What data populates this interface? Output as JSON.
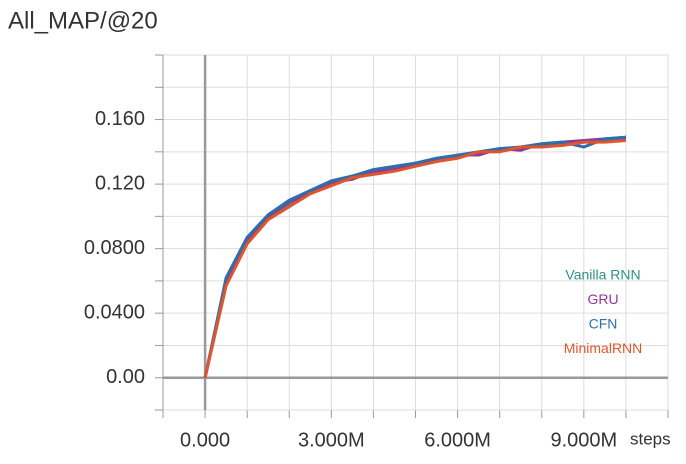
{
  "chart_data": {
    "type": "line",
    "title": "All_MAP/@20",
    "x_label": "steps",
    "x": [
      0,
      500000,
      1000000,
      1500000,
      2000000,
      2500000,
      3000000,
      3500000,
      4000000,
      4500000,
      5000000,
      5500000,
      6000000,
      6500000,
      7000000,
      7500000,
      8000000,
      8500000,
      9000000,
      9500000,
      10000000
    ],
    "series": [
      {
        "name": "Vanilla RNN",
        "color": "#2e9188",
        "values": [
          0,
          0.061,
          0.086,
          0.099,
          0.108,
          0.116,
          0.12,
          0.125,
          0.127,
          0.13,
          0.132,
          0.135,
          0.137,
          0.139,
          0.141,
          0.143,
          0.144,
          0.145,
          0.146,
          0.147,
          0.148
        ]
      },
      {
        "name": "GRU",
        "color": "#8e3a99",
        "values": [
          0,
          0.058,
          0.084,
          0.1,
          0.109,
          0.114,
          0.121,
          0.123,
          0.128,
          0.129,
          0.133,
          0.134,
          0.138,
          0.138,
          0.142,
          0.141,
          0.145,
          0.146,
          0.147,
          0.148,
          0.149
        ]
      },
      {
        "name": "CFN",
        "color": "#2f6ea8",
        "values": [
          0,
          0.062,
          0.087,
          0.101,
          0.11,
          0.116,
          0.122,
          0.125,
          0.129,
          0.131,
          0.133,
          0.136,
          0.138,
          0.14,
          0.142,
          0.143,
          0.145,
          0.146,
          0.143,
          0.148,
          0.149
        ]
      },
      {
        "name": "MinimalRNN",
        "color": "#e0552e",
        "values": [
          0,
          0.057,
          0.083,
          0.098,
          0.106,
          0.114,
          0.119,
          0.124,
          0.126,
          0.128,
          0.131,
          0.134,
          0.136,
          0.14,
          0.14,
          0.143,
          0.143,
          0.144,
          0.146,
          0.146,
          0.147
        ]
      }
    ],
    "xlim": [
      -1000000,
      11000000
    ],
    "xticks": [
      {
        "value": 0,
        "label": "0.000"
      },
      {
        "value": 3000000,
        "label": "3.000M"
      },
      {
        "value": 6000000,
        "label": "6.000M"
      },
      {
        "value": 9000000,
        "label": "9.000M"
      }
    ],
    "xminorticks": [
      -1000000,
      1000000,
      2000000,
      4000000,
      5000000,
      7000000,
      8000000,
      10000000,
      11000000
    ],
    "ylim": [
      -0.02,
      0.2
    ],
    "yticks": [
      {
        "value": 0,
        "label": "0.00"
      },
      {
        "value": 0.04,
        "label": "0.0400"
      },
      {
        "value": 0.08,
        "label": "0.0800"
      },
      {
        "value": 0.12,
        "label": "0.120"
      },
      {
        "value": 0.16,
        "label": "0.160"
      }
    ],
    "yminorticks": [
      -0.02,
      0.02,
      0.06,
      0.1,
      0.14,
      0.18,
      0.2
    ],
    "grid": true,
    "legend": "lower right"
  }
}
